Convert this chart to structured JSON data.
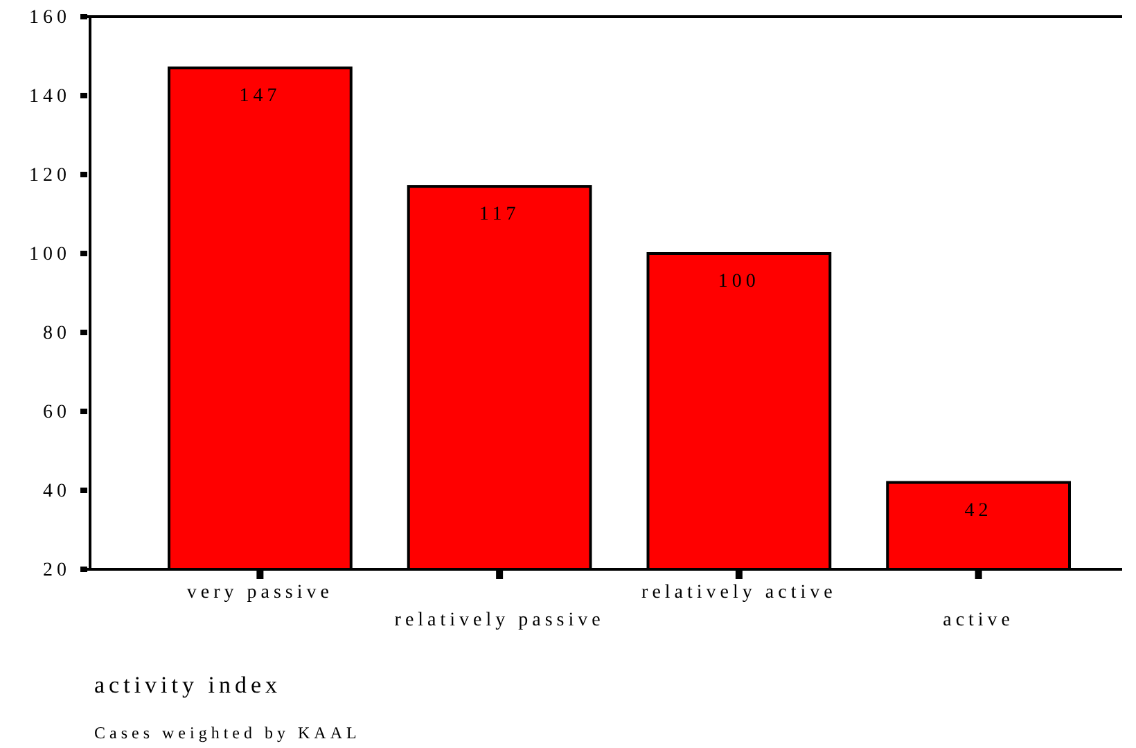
{
  "chart_data": {
    "type": "bar",
    "categories": [
      "very passive",
      "relatively passive",
      "relatively active",
      "active"
    ],
    "values": [
      147,
      117,
      100,
      42
    ],
    "color": "#ff0000",
    "data_labels": true,
    "ylim": [
      20,
      160
    ],
    "yticks": [
      20,
      40,
      60,
      80,
      100,
      120,
      140,
      160
    ],
    "grid": false,
    "xlabel": "activity index",
    "annotations": [
      "Cases weighted by KAAL"
    ]
  }
}
